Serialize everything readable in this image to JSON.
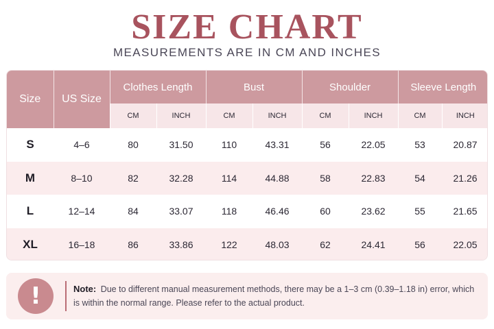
{
  "header": {
    "title": "SIZE CHART",
    "subtitle": "MEASUREMENTS ARE IN CM AND INCHES"
  },
  "table": {
    "size_header": "Size",
    "us_size_header": "US Size",
    "groups": [
      "Clothes Length",
      "Bust",
      "Shoulder",
      "Sleeve Length"
    ],
    "unit_cm": "CM",
    "unit_inch": "INCH",
    "rows": [
      {
        "size": "S",
        "us": "4–6",
        "cells": [
          "80",
          "31.50",
          "110",
          "43.31",
          "56",
          "22.05",
          "53",
          "20.87"
        ]
      },
      {
        "size": "M",
        "us": "8–10",
        "cells": [
          "82",
          "32.28",
          "114",
          "44.88",
          "58",
          "22.83",
          "54",
          "21.26"
        ]
      },
      {
        "size": "L",
        "us": "12–14",
        "cells": [
          "84",
          "33.07",
          "118",
          "46.46",
          "60",
          "23.62",
          "55",
          "21.65"
        ]
      },
      {
        "size": "XL",
        "us": "16–18",
        "cells": [
          "86",
          "33.86",
          "122",
          "48.03",
          "62",
          "24.41",
          "56",
          "22.05"
        ]
      }
    ]
  },
  "note": {
    "icon": "exclamation-icon",
    "label": "Note:",
    "text": "Due to different manual measurement methods, there may be a 1–3 cm (0.39–1.18 in) error, which is within the normal range. Please refer to the actual product."
  },
  "colors": {
    "title": "#a8535e",
    "header_bg": "#cd9a9f",
    "subheader_bg": "#f7e6e8",
    "row_alt_bg": "#fbeced",
    "note_bg": "#fbeeee"
  }
}
